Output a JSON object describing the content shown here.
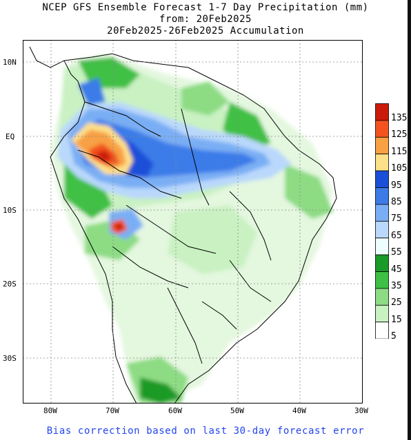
{
  "title": {
    "line1": "NCEP GFS Ensemble Forecast 1-7 Day Precipitation (mm)",
    "line2": "from: 20Feb2025",
    "line3": "20Feb2025-26Feb2025 Accumulation"
  },
  "lat_labels": [
    "10N",
    "EQ",
    "10S",
    "20S",
    "30S"
  ],
  "lon_labels": [
    "80W",
    "70W",
    "60W",
    "50W",
    "40W",
    "30W"
  ],
  "legend": {
    "ticks": [
      "135",
      "125",
      "115",
      "105",
      "95",
      "85",
      "75",
      "65",
      "55",
      "45",
      "35",
      "25",
      "15",
      "5"
    ],
    "colors": [
      "#cc1a0a",
      "#f2531f",
      "#f8a044",
      "#fde08a",
      "#1a4fd8",
      "#3b7be8",
      "#7aaef4",
      "#b9d8fb",
      "#eefeff",
      "#1a9a28",
      "#3fc044",
      "#8ddc84",
      "#c9f1c2",
      "#ffffff"
    ]
  },
  "footer": "Bias correction based on last 30-day forecast error"
}
